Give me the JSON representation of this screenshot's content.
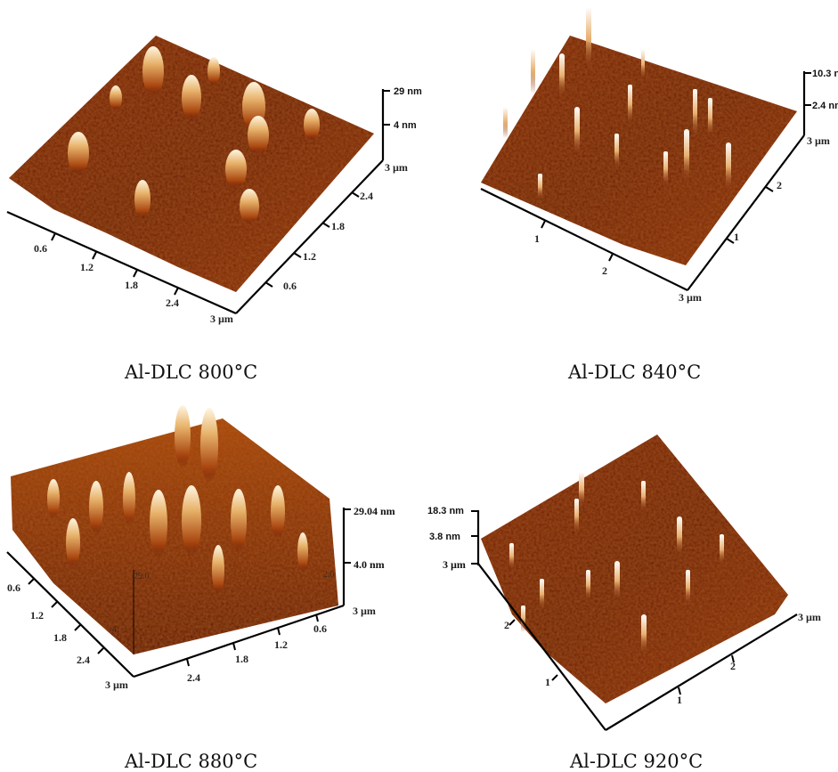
{
  "colors": {
    "surface_dark": "#5a1206",
    "surface_mid": "#9a3a10",
    "surface_light": "#d68a35",
    "peak_highlight": "#fff4dc"
  },
  "panels": [
    {
      "caption": "Al-DLC 800°C",
      "z_labels": [
        "29 nm",
        "4 nm"
      ],
      "axis_a_ticks": [
        "0.6",
        "1.2",
        "1.8",
        "2.4",
        "3 µm"
      ],
      "axis_b_ticks": [
        "0.6",
        "1.2",
        "1.8",
        "2.4",
        "3 µm"
      ]
    },
    {
      "caption": "Al-DLC 840°C",
      "z_labels": [
        "10.3 n",
        "2.4 nm"
      ],
      "axis_a_ticks": [
        "1",
        "2",
        "3 µm"
      ],
      "axis_b_ticks": [
        "1",
        "2",
        "3 µm"
      ]
    },
    {
      "caption": "Al-DLC 880°C",
      "z_labels": [
        "29.04 nm",
        "4.0 nm"
      ],
      "z_labels_faint": [
        "29.0",
        "2.0",
        "4."
      ],
      "axis_a_ticks": [
        "0.6",
        "1.2",
        "1.8",
        "2.4",
        "3 µm"
      ],
      "axis_b_ticks": [
        "2.4",
        "1.8",
        "1.2",
        "0.6",
        "3 µm"
      ]
    },
    {
      "caption": "Al-DLC 920°C",
      "z_labels": [
        "18.3 nm",
        "3.8 nm",
        "3 µm"
      ],
      "axis_a_ticks": [
        "2",
        "1"
      ],
      "axis_b_ticks": [
        "1",
        "2",
        "3 µm"
      ]
    }
  ]
}
